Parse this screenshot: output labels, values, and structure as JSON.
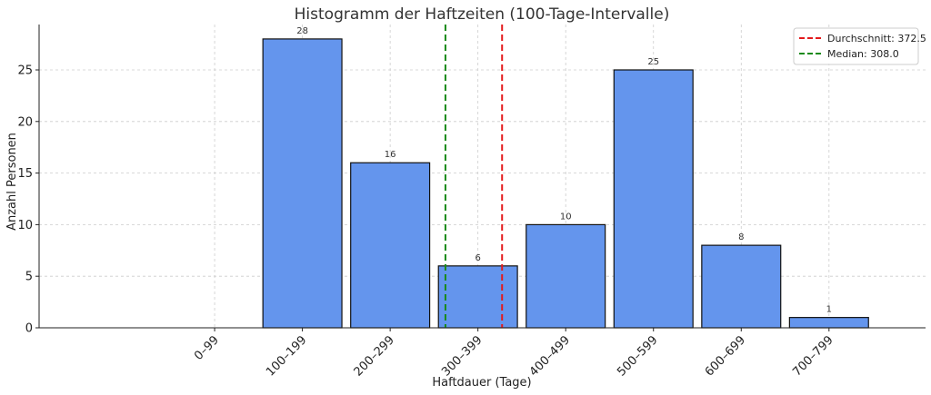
{
  "chart_data": {
    "type": "bar",
    "title": "Histogramm der Haftzeiten (100-Tage-Intervalle)",
    "xlabel": "Haftdauer (Tage)",
    "ylabel": "Anzahl Personen",
    "categories": [
      "0–99",
      "100–199",
      "200–299",
      "300–399",
      "400–499",
      "500–599",
      "600–699",
      "700–799"
    ],
    "values": [
      0,
      28,
      16,
      6,
      10,
      25,
      8,
      1
    ],
    "data_labels": [
      "",
      "28",
      "16",
      "6",
      "10",
      "25",
      "8",
      "1"
    ],
    "x_range_days": [
      -155,
      855
    ],
    "bin_starts_days": [
      0,
      100,
      200,
      300,
      400,
      500,
      600,
      700
    ],
    "ylim": [
      0,
      29.4
    ],
    "yticks": [
      0,
      5,
      10,
      15,
      20,
      25
    ],
    "ytick_labels": [
      "0",
      "5",
      "10",
      "15",
      "20",
      "25"
    ],
    "grid": true,
    "legend_position": "top-right",
    "bar_color": "#6495ED",
    "bar_edge_color": "#111111",
    "reference_lines": [
      {
        "label": "Durchschnitt: 372.5",
        "value": 372.5,
        "color": "#E31A1C",
        "style": "dashed"
      },
      {
        "label": "Median: 308.0",
        "value": 308.0,
        "color": "#1A8A1A",
        "style": "dashed"
      }
    ]
  }
}
